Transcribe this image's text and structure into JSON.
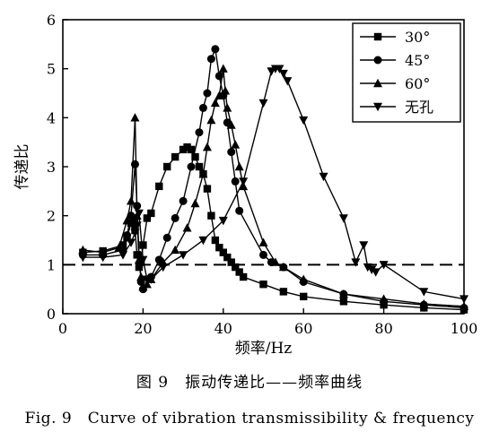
{
  "caption": {
    "cn": "图 9　振动传递比——频率曲线",
    "en": "Fig. 9　Curve of vibration transmissibility & frequency"
  },
  "chart_data": {
    "type": "line",
    "xlabel": "频率/Hz",
    "ylabel": "传递比",
    "xlim": [
      0,
      100
    ],
    "ylim": [
      0,
      6
    ],
    "x_ticks": [
      0,
      20,
      40,
      60,
      80,
      100
    ],
    "y_ticks": [
      0,
      1,
      2,
      3,
      4,
      5,
      6
    ],
    "grid": false,
    "legend_position": "top-right",
    "reference_line": {
      "y": 1,
      "style": "dashed"
    },
    "series": [
      {
        "name": "30°",
        "marker": "square",
        "points": [
          [
            5,
            1.25
          ],
          [
            10,
            1.28
          ],
          [
            15,
            1.4
          ],
          [
            16,
            1.55
          ],
          [
            17,
            1.85
          ],
          [
            17.5,
            1.95
          ],
          [
            18,
            1.7
          ],
          [
            18.5,
            1.2
          ],
          [
            19,
            0.95
          ],
          [
            19.5,
            1.05
          ],
          [
            20,
            1.4
          ],
          [
            21,
            1.95
          ],
          [
            22,
            2.05
          ],
          [
            24,
            2.6
          ],
          [
            26,
            3.0
          ],
          [
            28,
            3.2
          ],
          [
            30,
            3.35
          ],
          [
            31,
            3.4
          ],
          [
            32,
            3.35
          ],
          [
            33,
            3.2
          ],
          [
            34,
            3.0
          ],
          [
            35,
            2.85
          ],
          [
            36,
            2.55
          ],
          [
            37,
            2.0
          ],
          [
            38,
            1.5
          ],
          [
            39,
            1.35
          ],
          [
            40,
            1.25
          ],
          [
            41,
            1.15
          ],
          [
            42,
            1.05
          ],
          [
            43,
            0.95
          ],
          [
            44,
            0.85
          ],
          [
            45,
            0.75
          ],
          [
            50,
            0.6
          ],
          [
            55,
            0.45
          ],
          [
            60,
            0.35
          ],
          [
            70,
            0.25
          ],
          [
            80,
            0.18
          ],
          [
            90,
            0.12
          ],
          [
            100,
            0.08
          ]
        ]
      },
      {
        "name": "45°",
        "marker": "circle",
        "points": [
          [
            5,
            1.2
          ],
          [
            10,
            1.2
          ],
          [
            15,
            1.3
          ],
          [
            16,
            1.6
          ],
          [
            17,
            2.0
          ],
          [
            18,
            3.05
          ],
          [
            18.5,
            2.2
          ],
          [
            19,
            1.2
          ],
          [
            19.5,
            0.65
          ],
          [
            20,
            0.5
          ],
          [
            22,
            0.75
          ],
          [
            24,
            1.1
          ],
          [
            26,
            1.55
          ],
          [
            28,
            1.95
          ],
          [
            30,
            2.3
          ],
          [
            32,
            3.0
          ],
          [
            34,
            3.7
          ],
          [
            35,
            4.2
          ],
          [
            36,
            4.5
          ],
          [
            37,
            5.2
          ],
          [
            38,
            5.4
          ],
          [
            39,
            4.85
          ],
          [
            40,
            4.45
          ],
          [
            41,
            3.9
          ],
          [
            42,
            3.3
          ],
          [
            43,
            2.7
          ],
          [
            44,
            2.1
          ],
          [
            50,
            1.2
          ],
          [
            52,
            1.05
          ],
          [
            55,
            0.95
          ],
          [
            60,
            0.65
          ],
          [
            70,
            0.4
          ],
          [
            80,
            0.25
          ],
          [
            90,
            0.18
          ],
          [
            100,
            0.12
          ]
        ]
      },
      {
        "name": "60°",
        "marker": "triangle-up",
        "points": [
          [
            5,
            1.3
          ],
          [
            10,
            1.25
          ],
          [
            14,
            1.35
          ],
          [
            16,
            1.9
          ],
          [
            17,
            2.3
          ],
          [
            18,
            4.0
          ],
          [
            18.5,
            2.0
          ],
          [
            19,
            1.1
          ],
          [
            19.5,
            0.75
          ],
          [
            20,
            0.55
          ],
          [
            21,
            0.6
          ],
          [
            22,
            0.7
          ],
          [
            25,
            1.05
          ],
          [
            28,
            1.3
          ],
          [
            31,
            1.75
          ],
          [
            33,
            2.25
          ],
          [
            35,
            2.85
          ],
          [
            36,
            3.4
          ],
          [
            37,
            3.95
          ],
          [
            38,
            4.3
          ],
          [
            39,
            4.45
          ],
          [
            40,
            5.0
          ],
          [
            40.5,
            4.55
          ],
          [
            41,
            4.2
          ],
          [
            42,
            3.85
          ],
          [
            43,
            3.45
          ],
          [
            44,
            3.0
          ],
          [
            45,
            2.6
          ],
          [
            50,
            1.45
          ],
          [
            53,
            1.05
          ],
          [
            55,
            0.95
          ],
          [
            60,
            0.7
          ],
          [
            70,
            0.4
          ],
          [
            80,
            0.3
          ],
          [
            90,
            0.2
          ],
          [
            100,
            0.15
          ]
        ]
      },
      {
        "name": "无孔",
        "marker": "triangle-down",
        "points": [
          [
            5,
            1.15
          ],
          [
            10,
            1.15
          ],
          [
            15,
            1.2
          ],
          [
            17,
            1.45
          ],
          [
            18,
            1.65
          ],
          [
            18.5,
            1.8
          ],
          [
            19,
            2.05
          ],
          [
            20,
            1.1
          ],
          [
            21,
            0.7
          ],
          [
            22,
            0.7
          ],
          [
            25,
            0.95
          ],
          [
            30,
            1.2
          ],
          [
            35,
            1.5
          ],
          [
            40,
            1.9
          ],
          [
            45,
            2.7
          ],
          [
            50,
            4.3
          ],
          [
            52,
            4.95
          ],
          [
            53,
            5.0
          ],
          [
            54,
            5.0
          ],
          [
            55,
            4.9
          ],
          [
            56,
            4.75
          ],
          [
            60,
            3.95
          ],
          [
            65,
            2.8
          ],
          [
            70,
            1.95
          ],
          [
            75,
            1.4
          ],
          [
            80,
            1.0
          ],
          [
            73,
            1.05
          ],
          [
            76,
            0.95
          ],
          [
            77,
            0.9
          ],
          [
            78,
            0.85
          ],
          [
            90,
            0.45
          ],
          [
            100,
            0.3
          ]
        ]
      }
    ]
  }
}
